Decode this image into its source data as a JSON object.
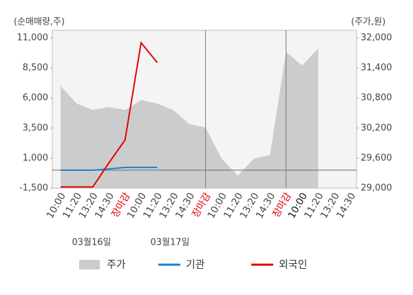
{
  "chart_data": {
    "type": "line",
    "y_axis_label": "(순매매량,주)",
    "y2_axis_label": "(주가,원)",
    "categories": [
      "10:00",
      "11:20",
      "13:20",
      "14:30",
      "장마감",
      "10:00",
      "11:20",
      "13:20",
      "14:30",
      "장마감",
      "10:00",
      "11:20",
      "13:20",
      "14:30",
      "장마감",
      "10:00",
      "11:20",
      "13:20",
      "14:30"
    ],
    "category_colors": [
      "#444",
      "#444",
      "#444",
      "#444",
      "#e00000",
      "#444",
      "#444",
      "#444",
      "#444",
      "#e00000",
      "#444",
      "#444",
      "#444",
      "#444",
      "#e00000",
      "#111",
      "#444",
      "#444",
      "#444"
    ],
    "date_labels": [
      "03월16일",
      "03월17일"
    ],
    "ylim": [
      -1500,
      11000
    ],
    "yticks": [
      {
        "value": -1500,
        "label": "-1,500"
      },
      {
        "value": 1000,
        "label": "1,000"
      },
      {
        "value": 3500,
        "label": "3,500"
      },
      {
        "value": 6000,
        "label": "6,000"
      },
      {
        "value": 8500,
        "label": "8,500"
      },
      {
        "value": 11000,
        "label": "11,000"
      }
    ],
    "y2lim": [
      29000,
      32000
    ],
    "y2ticks": [
      {
        "value": 29000,
        "label": "29,000"
      },
      {
        "value": 29600,
        "label": "29,600"
      },
      {
        "value": 30200,
        "label": "30,200"
      },
      {
        "value": 30800,
        "label": "30,800"
      },
      {
        "value": 31400,
        "label": "31,400"
      },
      {
        "value": 32000,
        "label": "32,000"
      }
    ],
    "series": [
      {
        "name": "주가",
        "color": "#cccccc",
        "axis": "y2",
        "kind": "area",
        "values": [
          31040,
          30690,
          30560,
          30620,
          30560,
          30760,
          30690,
          30560,
          30280,
          30210,
          29590,
          29250,
          29590,
          29660,
          31720,
          31450,
          31790,
          null,
          null
        ]
      },
      {
        "name": "기관",
        "color": "#1a7fd4",
        "kind": "line",
        "values": [
          0,
          0,
          0,
          100,
          230,
          230,
          230,
          null,
          null,
          null,
          null,
          null,
          null,
          null,
          null,
          null,
          null,
          null,
          null
        ]
      },
      {
        "name": "외국인",
        "color": "#e00000",
        "kind": "line",
        "values": [
          -1400,
          -1400,
          -1400,
          600,
          2500,
          10600,
          8950,
          null,
          null,
          null,
          null,
          null,
          null,
          null,
          null,
          null,
          null,
          null,
          null
        ]
      }
    ]
  }
}
